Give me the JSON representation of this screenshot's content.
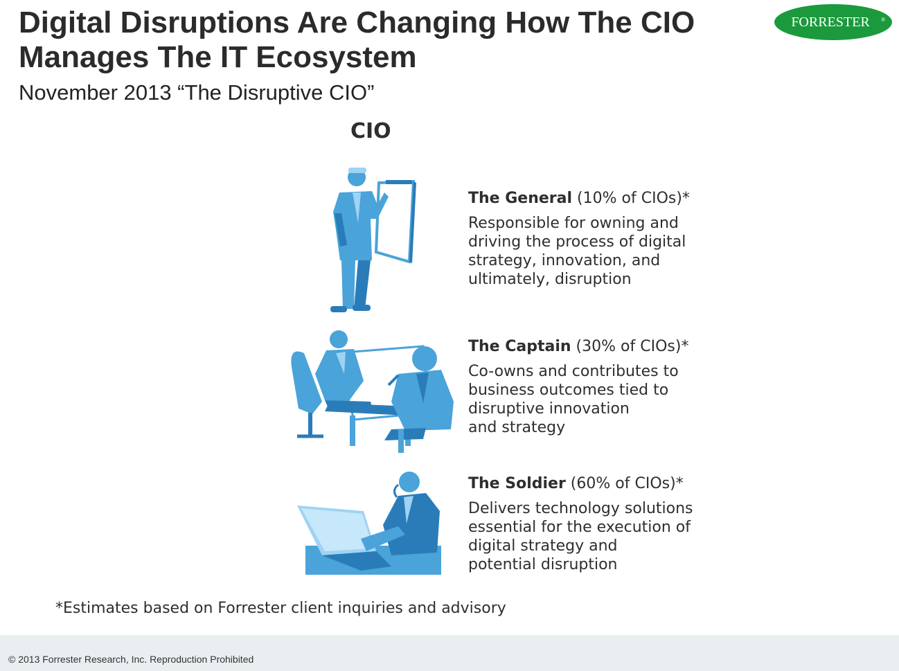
{
  "header": {
    "title_line1": "Digital Disruptions Are Changing How The CIO",
    "title_line2": "Manages The IT Ecosystem",
    "subtitle": "November 2013 “The Disruptive CIO”",
    "logo_text": "FORRESTER",
    "logo_mark": "®"
  },
  "diagram": {
    "heading": "CIO",
    "roles": [
      {
        "name": "The General",
        "share": " (10% of CIOs)*",
        "icon": "presenter-icon",
        "desc": [
          "Responsible for owning and",
          "driving the process of digital",
          "strategy, innovation, and",
          "ultimately, disruption"
        ]
      },
      {
        "name": "The Captain",
        "share": " (30% of CIOs)*",
        "icon": "meeting-icon",
        "desc": [
          "Co-owns and contributes to",
          "business outcomes tied to",
          "disruptive innovation",
          "and strategy"
        ]
      },
      {
        "name": "The Soldier",
        "share": " (60% of CIOs)*",
        "icon": "laptop-worker-icon",
        "desc": [
          "Delivers technology solutions",
          "essential for the execution of",
          "digital strategy and",
          "potential disruption"
        ]
      }
    ]
  },
  "footnote": "*Estimates based on Forrester client inquiries and advisory",
  "footer": {
    "copyright": "© 2013 Forrester Research, Inc. Reproduction Prohibited"
  },
  "colors": {
    "logo_green": "#1a9a3c",
    "figure_blue": "#4aa3d9",
    "figure_dark": "#2a7cb8",
    "figure_light": "#9fd3f3",
    "footer_bg": "#e9eef1"
  }
}
